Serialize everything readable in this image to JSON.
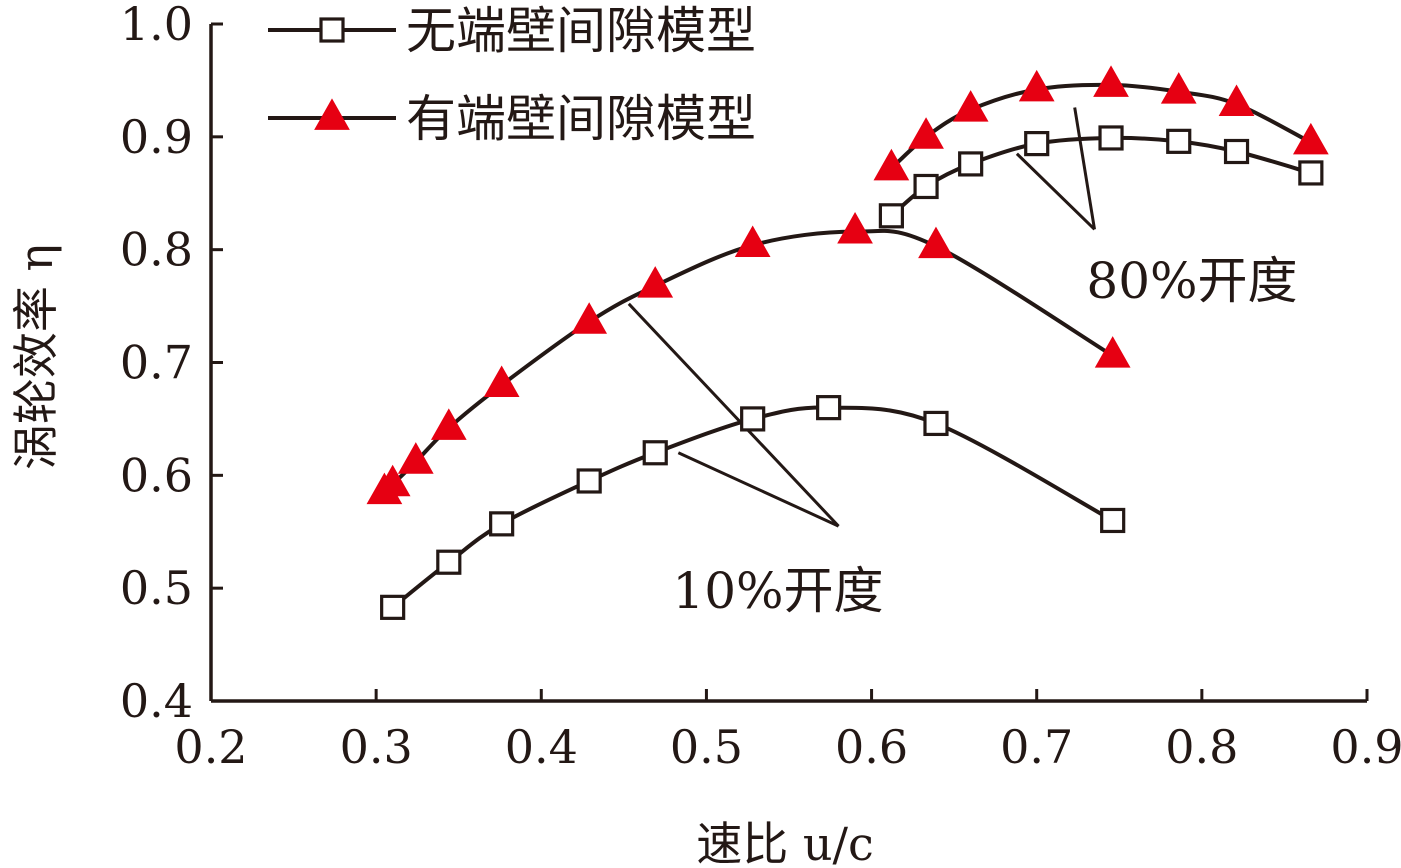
{
  "chart_data": {
    "type": "line",
    "xlabel": "速比 u/c",
    "ylabel": "涡轮效率 η",
    "xlim": [
      0.2,
      0.9
    ],
    "ylim": [
      0.4,
      1.0
    ],
    "x_ticks": [
      "0.2",
      "0.3",
      "0.4",
      "0.5",
      "0.6",
      "0.7",
      "0.8",
      "0.9"
    ],
    "y_ticks": [
      "0.4",
      "0.5",
      "0.6",
      "0.7",
      "0.8",
      "0.9",
      "1.0"
    ],
    "grid": false,
    "legend_position": "top-left",
    "legend": [
      {
        "label": "无端壁间隙模型",
        "marker": "square-open",
        "color": "#231815"
      },
      {
        "label": "有端壁间隙模型",
        "marker": "triangle-filled",
        "color": "#e60012"
      }
    ],
    "series": [
      {
        "name": "无端壁间隙模型",
        "group": "10%开度",
        "marker": "square-open",
        "x": [
          0.31,
          0.344,
          0.376,
          0.429,
          0.469,
          0.528,
          0.574,
          0.639,
          0.746
        ],
        "y": [
          0.483,
          0.523,
          0.557,
          0.595,
          0.62,
          0.65,
          0.66,
          0.646,
          0.56
        ]
      },
      {
        "name": "有端壁间隙模型",
        "group": "10%开度",
        "marker": "triangle-filled",
        "x": [
          0.305,
          0.31,
          0.324,
          0.344,
          0.376,
          0.429,
          0.469,
          0.528,
          0.59,
          0.639,
          0.746
        ],
        "y": [
          0.585,
          0.592,
          0.612,
          0.642,
          0.68,
          0.736,
          0.768,
          0.804,
          0.816,
          0.803,
          0.706
        ]
      },
      {
        "name": "无端壁间隙模型",
        "group": "80%开度",
        "marker": "square-open",
        "x": [
          0.612,
          0.633,
          0.66,
          0.7,
          0.745,
          0.786,
          0.821,
          0.866
        ],
        "y": [
          0.83,
          0.856,
          0.876,
          0.894,
          0.899,
          0.896,
          0.887,
          0.868
        ]
      },
      {
        "name": "有端壁间隙模型",
        "group": "80%开度",
        "marker": "triangle-filled",
        "x": [
          0.612,
          0.633,
          0.66,
          0.7,
          0.745,
          0.786,
          0.821,
          0.866
        ],
        "y": [
          0.872,
          0.9,
          0.924,
          0.942,
          0.946,
          0.94,
          0.929,
          0.895
        ]
      }
    ],
    "annotations": [
      {
        "text": "10%开度",
        "label_x": 0.58,
        "label_y": 0.555,
        "points": [
          [
            0.453,
            0.752
          ],
          [
            0.483,
            0.62
          ]
        ]
      },
      {
        "text": "80%开度",
        "label_x": 0.735,
        "label_y": 0.818,
        "points": [
          [
            0.723,
            0.926
          ],
          [
            0.688,
            0.885
          ]
        ]
      }
    ]
  }
}
